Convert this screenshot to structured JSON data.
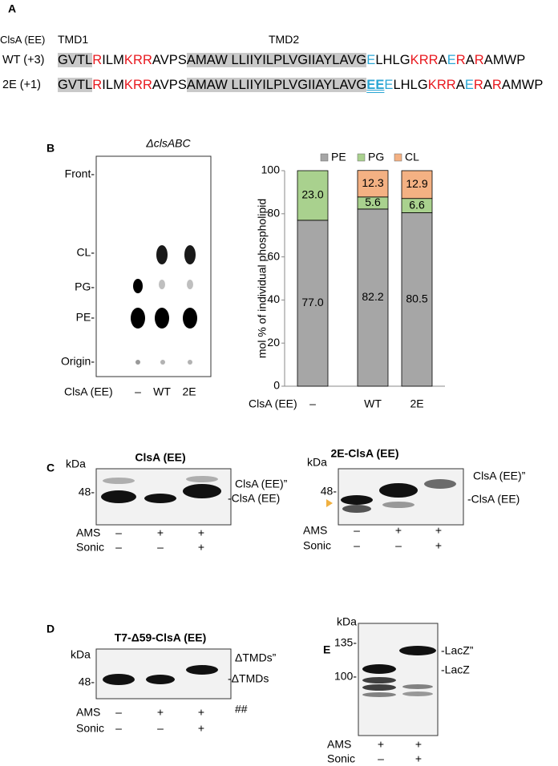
{
  "panel_labels": [
    "A",
    "B",
    "C",
    "D",
    "E"
  ],
  "sequences": {
    "header": "ClsA (EE)",
    "tmd_labels": [
      "TMD1",
      "TMD2"
    ],
    "styles": {
      "tm": {
        "background": "#c9c9c9",
        "color": "#000000"
      },
      "plain": {
        "color": "#000000"
      },
      "pos": {
        "color": "#e8191f"
      },
      "neg": {
        "color": "#2aa6d4"
      },
      "mut": {
        "color": "#2aa6d4",
        "bold": true,
        "underline": true
      }
    },
    "rows": [
      {
        "label": "WT (+3)",
        "segments": [
          {
            "text": "GVTL",
            "style": "tm"
          },
          {
            "text": "R",
            "style": "pos"
          },
          {
            "text": "ILM",
            "style": "plain"
          },
          {
            "text": "KRR",
            "style": "pos"
          },
          {
            "text": "AVPS",
            "style": "plain"
          },
          {
            "text": "AMAW LLIIYILPLVGIIAYLAVG",
            "style": "tm"
          },
          {
            "text": "E",
            "style": "neg"
          },
          {
            "text": "LHLG",
            "style": "plain"
          },
          {
            "text": "KRR",
            "style": "pos"
          },
          {
            "text": "A",
            "style": "plain"
          },
          {
            "text": "E",
            "style": "neg"
          },
          {
            "text": "R",
            "style": "pos"
          },
          {
            "text": "A",
            "style": "plain"
          },
          {
            "text": "R",
            "style": "pos"
          },
          {
            "text": "AMWP",
            "style": "plain"
          }
        ]
      },
      {
        "label": "2E (+1)",
        "segments": [
          {
            "text": "GVTL",
            "style": "tm"
          },
          {
            "text": "R",
            "style": "pos"
          },
          {
            "text": "ILM",
            "style": "plain"
          },
          {
            "text": "KRR",
            "style": "pos"
          },
          {
            "text": "AVPS",
            "style": "plain"
          },
          {
            "text": "AMAW LLIIYILPLVGIIAYLAVG",
            "style": "tm"
          },
          {
            "text": "EE",
            "style": "mut"
          },
          {
            "text": "E",
            "style": "neg"
          },
          {
            "text": "LHLG",
            "style": "plain"
          },
          {
            "text": "KRR",
            "style": "pos"
          },
          {
            "text": "A",
            "style": "plain"
          },
          {
            "text": "E",
            "style": "neg"
          },
          {
            "text": "R",
            "style": "pos"
          },
          {
            "text": "A",
            "style": "plain"
          },
          {
            "text": "R",
            "style": "pos"
          },
          {
            "text": "AMWP",
            "style": "plain"
          }
        ]
      }
    ]
  },
  "tlc": {
    "title": "ΔclsABC",
    "spot_labels": [
      "Front-",
      "CL-",
      "PG-",
      "PE-",
      "Origin-"
    ],
    "lane_header": "ClsA (EE)",
    "lanes": [
      "–",
      "WT",
      "2E"
    ]
  },
  "chart_data": {
    "type": "stacked-bar",
    "y_label": "mol % of individual phospholipid",
    "x_label": "ClsA (EE)",
    "categories": [
      "–",
      "WT",
      "2E"
    ],
    "series": [
      {
        "name": "PE",
        "color": "#a6a6a6",
        "values": [
          77.0,
          82.2,
          80.5
        ],
        "value_labels": [
          "77.0",
          "82.2",
          "80.5"
        ]
      },
      {
        "name": "PG",
        "color": "#a9d18e",
        "values": [
          23.0,
          5.6,
          6.6
        ],
        "value_labels": [
          "23.0",
          "5.6",
          "6.6"
        ]
      },
      {
        "name": "CL",
        "color": "#f4b183",
        "values": [
          null,
          12.3,
          12.9
        ],
        "value_labels": [
          null,
          "12.3",
          "12.9"
        ]
      }
    ],
    "ylim": [
      0,
      100
    ],
    "yticks": [
      0,
      20,
      40,
      60,
      80,
      100
    ],
    "legend": "top"
  },
  "blots": [
    {
      "title": "ClsA (EE)",
      "unit": "kDa",
      "markers": [
        "48-"
      ],
      "band_labels": [
        "ClsA (EE)”",
        "-ClsA (EE)"
      ],
      "rows": [
        {
          "label": "AMS",
          "marks": [
            "–",
            "+",
            "+"
          ]
        },
        {
          "label": "Sonic",
          "marks": [
            "–",
            "–",
            "+"
          ]
        }
      ]
    },
    {
      "title": "2E-ClsA (EE)",
      "unit": "kDa",
      "markers": [
        "48-"
      ],
      "band_labels": [
        "ClsA (EE)”",
        "-ClsA (EE)"
      ],
      "rows": [
        {
          "label": "AMS",
          "marks": [
            "–",
            "+",
            "+"
          ]
        },
        {
          "label": "Sonic",
          "marks": [
            "–",
            "–",
            "+"
          ]
        }
      ]
    },
    {
      "title": "T7-Δ59-ClsA (EE)",
      "unit": "kDa",
      "markers": [
        "48-"
      ],
      "band_labels": [
        "ΔTMDs”",
        "-ΔTMDs",
        "##"
      ],
      "rows": [
        {
          "label": "AMS",
          "marks": [
            "–",
            "+",
            "+"
          ]
        },
        {
          "label": "Sonic",
          "marks": [
            "–",
            "–",
            "+"
          ]
        }
      ]
    },
    {
      "title": null,
      "unit": "kDa",
      "markers": [
        "135-",
        "100-"
      ],
      "band_labels": [
        "-LacZ”",
        "-LacZ"
      ],
      "rows": [
        {
          "label": "AMS",
          "marks": [
            "+",
            "+"
          ]
        },
        {
          "label": "Sonic",
          "marks": [
            "–",
            "+"
          ]
        }
      ]
    }
  ]
}
